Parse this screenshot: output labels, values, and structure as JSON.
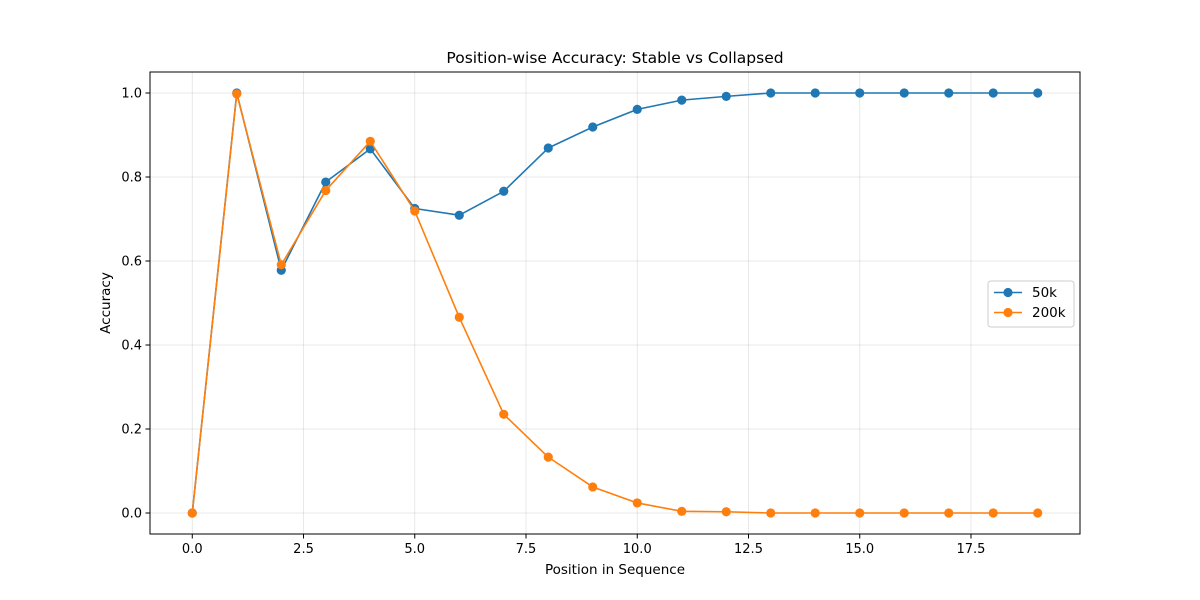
{
  "chart_data": {
    "type": "line",
    "title": "Position-wise Accuracy: Stable vs Collapsed",
    "xlabel": "Position in Sequence",
    "ylabel": "Accuracy",
    "xlim": [
      -0.95,
      19.95
    ],
    "ylim": [
      -0.05,
      1.05
    ],
    "xticks": [
      0.0,
      2.5,
      5.0,
      7.5,
      10.0,
      12.5,
      15.0,
      17.5
    ],
    "xtick_labels": [
      "0.0",
      "2.5",
      "5.0",
      "7.5",
      "10.0",
      "12.5",
      "15.0",
      "17.5"
    ],
    "yticks": [
      0.0,
      0.2,
      0.4,
      0.6,
      0.8,
      1.0
    ],
    "ytick_labels": [
      "0.0",
      "0.2",
      "0.4",
      "0.6",
      "0.8",
      "1.0"
    ],
    "grid": true,
    "legend_position": "center-right",
    "x": [
      0,
      1,
      2,
      3,
      4,
      5,
      6,
      7,
      8,
      9,
      10,
      11,
      12,
      13,
      14,
      15,
      16,
      17,
      18,
      19
    ],
    "series": [
      {
        "name": "50k",
        "color": "#1f77b4",
        "values": [
          0.0,
          1.0,
          0.578,
          0.788,
          0.867,
          0.725,
          0.709,
          0.766,
          0.869,
          0.919,
          0.961,
          0.983,
          0.992,
          1.0,
          1.0,
          1.0,
          1.0,
          1.0,
          1.0,
          1.0
        ]
      },
      {
        "name": "200k",
        "color": "#ff7f0e",
        "values": [
          0.0,
          0.998,
          0.591,
          0.768,
          0.885,
          0.719,
          0.466,
          0.235,
          0.133,
          0.062,
          0.024,
          0.004,
          0.003,
          0.0,
          0.0,
          0.0,
          0.0,
          0.0,
          0.0,
          0.0
        ]
      }
    ]
  }
}
